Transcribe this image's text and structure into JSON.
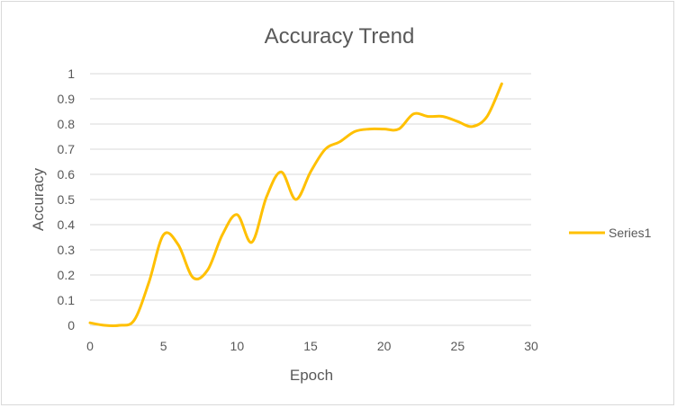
{
  "chart_data": {
    "type": "line",
    "title": "Accuracy Trend",
    "xlabel": "Epoch",
    "ylabel": "Accuracy",
    "xlim": [
      0,
      30
    ],
    "ylim": [
      0,
      1
    ],
    "x_ticks": [
      "0",
      "5",
      "10",
      "15",
      "20",
      "25",
      "30"
    ],
    "y_ticks": [
      "0",
      "0.1",
      "0.2",
      "0.3",
      "0.4",
      "0.5",
      "0.6",
      "0.7",
      "0.8",
      "0.9",
      "1"
    ],
    "grid": "horizontal",
    "legend_position": "right",
    "smooth": true,
    "series": [
      {
        "name": "Series1",
        "color": "#FFC000",
        "x": [
          0,
          1,
          2,
          3,
          4,
          5,
          6,
          7,
          8,
          9,
          10,
          11,
          12,
          13,
          14,
          15,
          16,
          17,
          18,
          19,
          20,
          21,
          22,
          23,
          24,
          25,
          26,
          27,
          28
        ],
        "y": [
          0.01,
          0.0,
          0.0,
          0.02,
          0.17,
          0.36,
          0.32,
          0.19,
          0.22,
          0.36,
          0.44,
          0.33,
          0.51,
          0.61,
          0.5,
          0.61,
          0.7,
          0.73,
          0.77,
          0.78,
          0.78,
          0.78,
          0.84,
          0.83,
          0.83,
          0.81,
          0.79,
          0.83,
          0.96
        ]
      }
    ]
  }
}
